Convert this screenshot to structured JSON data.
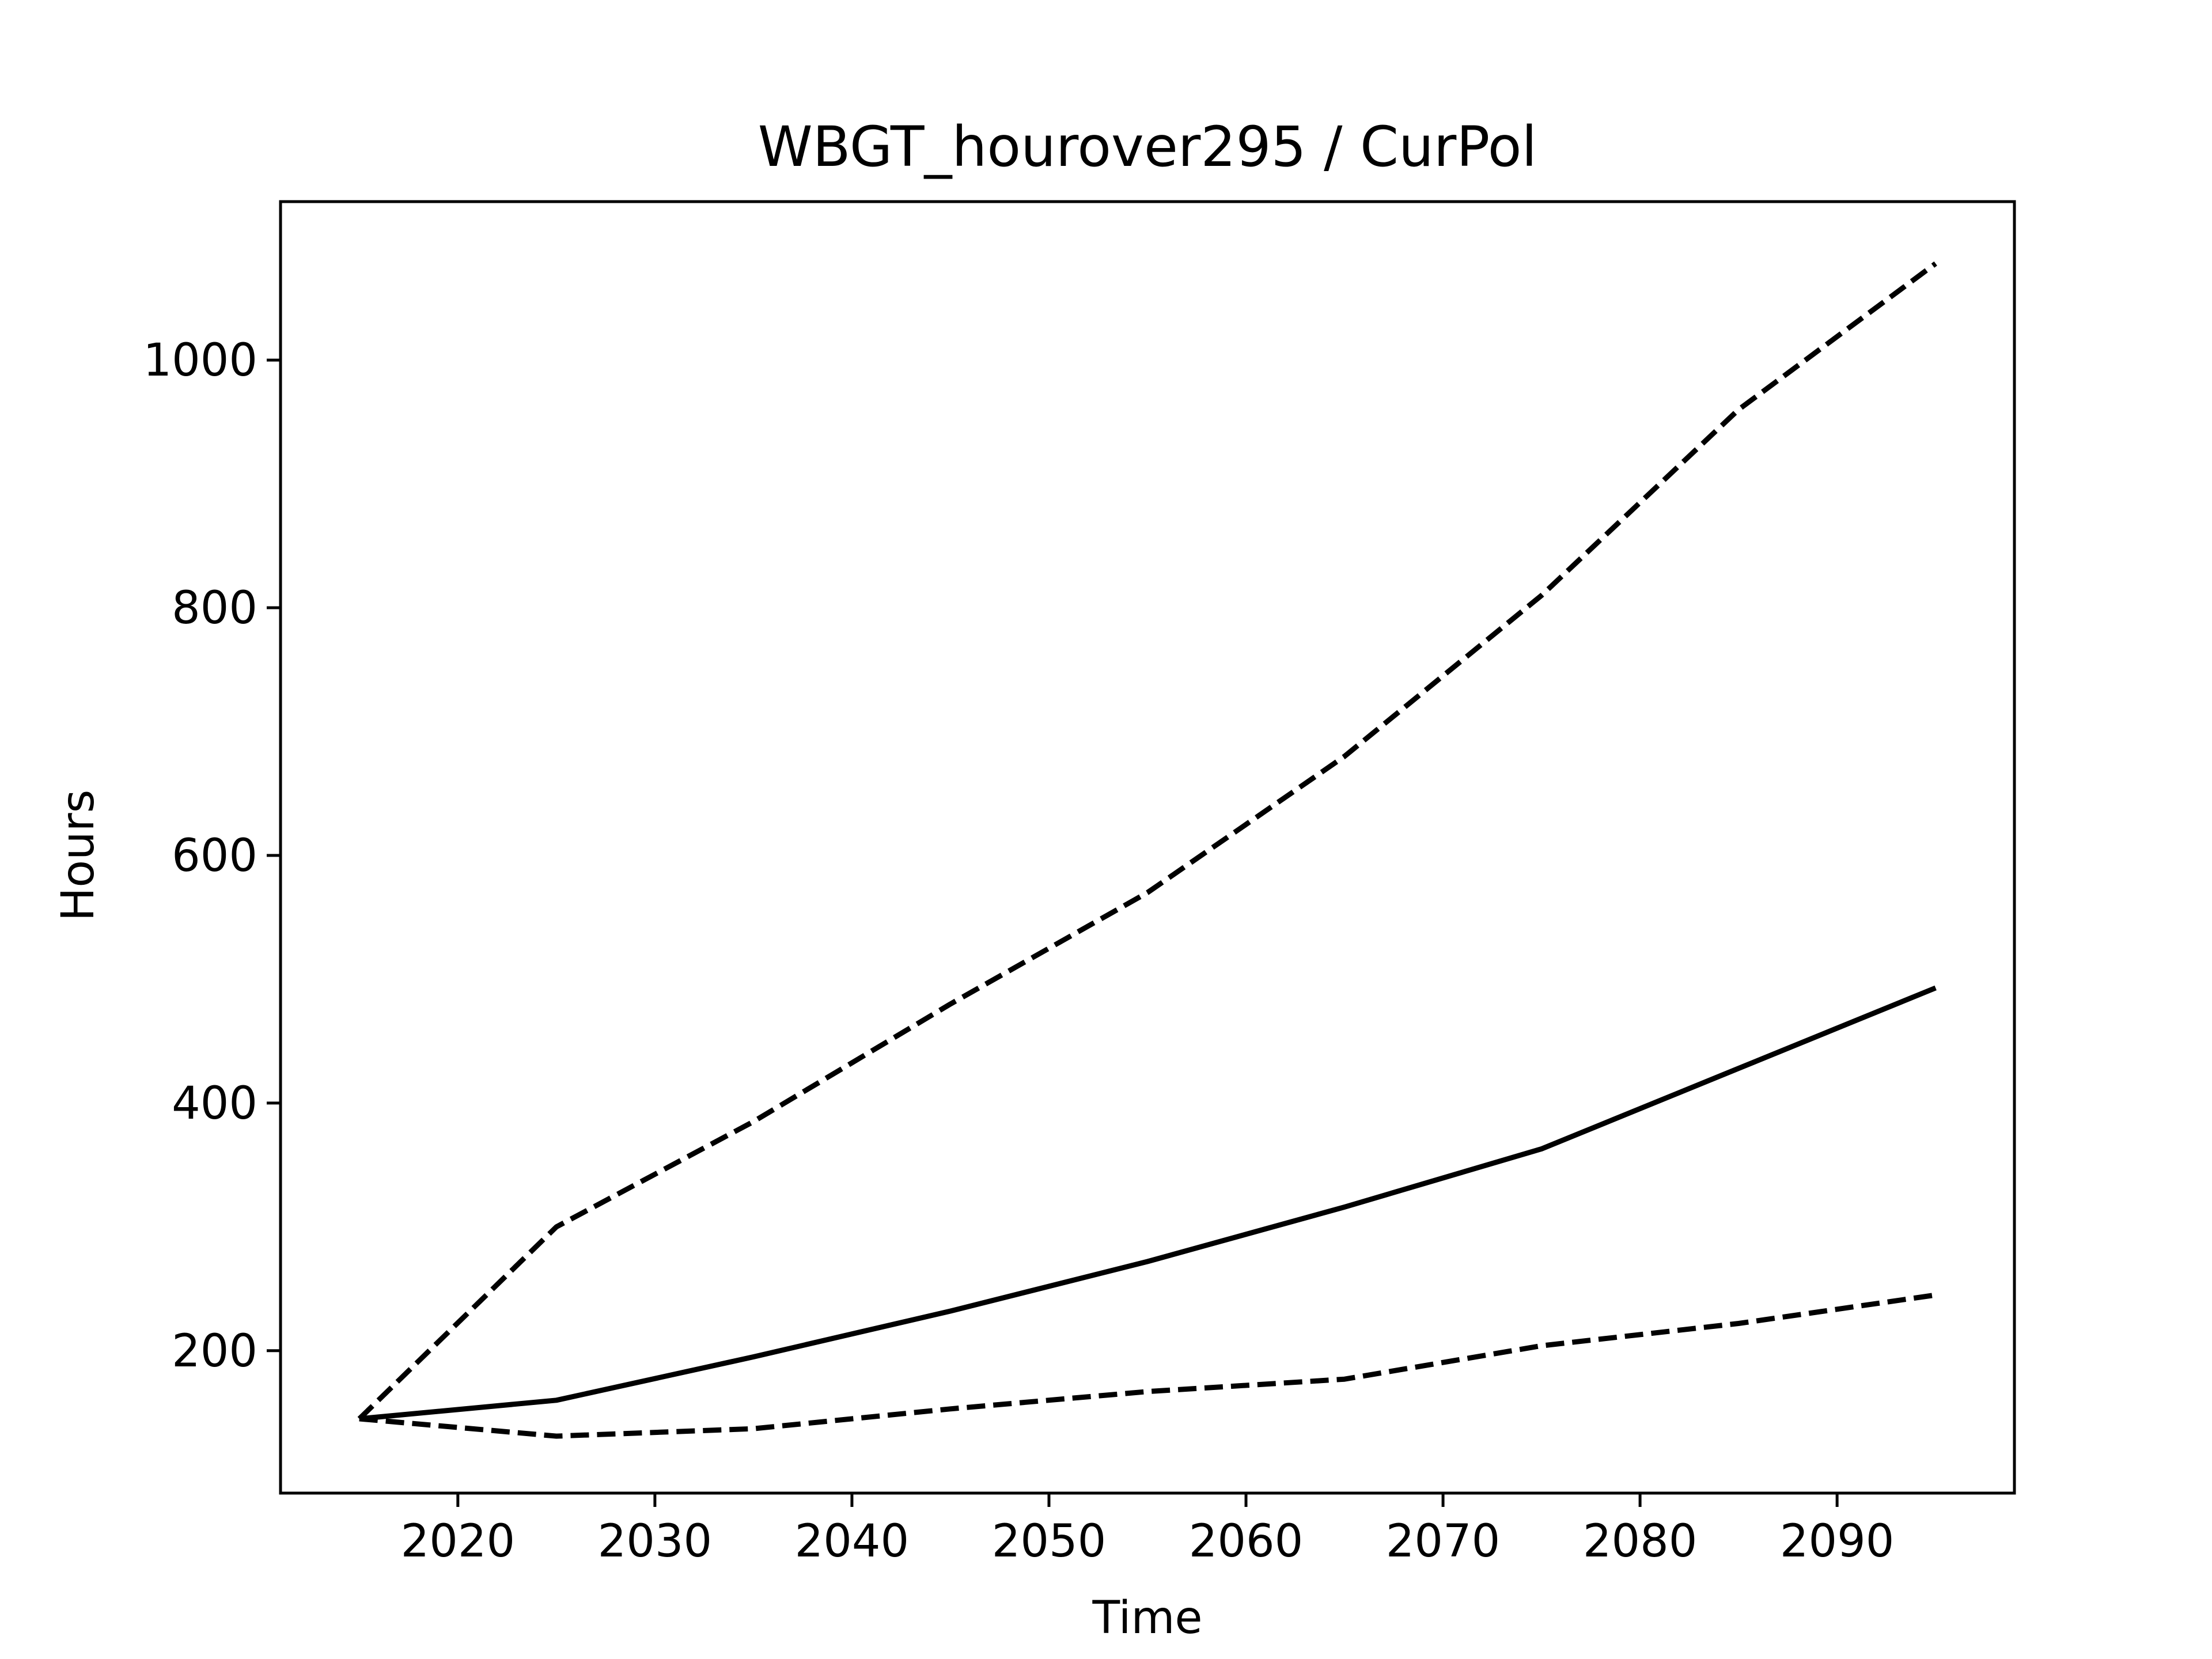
{
  "chart_data": {
    "type": "line",
    "title": "WBGT_hourover295 / CurPol",
    "xlabel": "Time",
    "ylabel": "Hours",
    "x": [
      2015,
      2025,
      2035,
      2045,
      2055,
      2065,
      2075,
      2085,
      2095
    ],
    "xlim": [
      2011,
      2099
    ],
    "ylim": [
      85,
      1128
    ],
    "xticks": [
      2020,
      2030,
      2040,
      2050,
      2060,
      2070,
      2080,
      2090
    ],
    "yticks": [
      200,
      400,
      600,
      800,
      1000
    ],
    "grid": false,
    "legend": "none",
    "series": [
      {
        "style": "dashed",
        "color": "#000000",
        "values": [
          145,
          300,
          385,
          480,
          570,
          680,
          810,
          960,
          1078
        ]
      },
      {
        "style": "solid",
        "color": "#000000",
        "values": [
          145,
          160,
          195,
          232,
          272,
          316,
          363,
          428,
          493
        ]
      },
      {
        "style": "dashed",
        "color": "#000000",
        "values": [
          145,
          131,
          137,
          153,
          167,
          177,
          204,
          222,
          245
        ]
      }
    ]
  }
}
